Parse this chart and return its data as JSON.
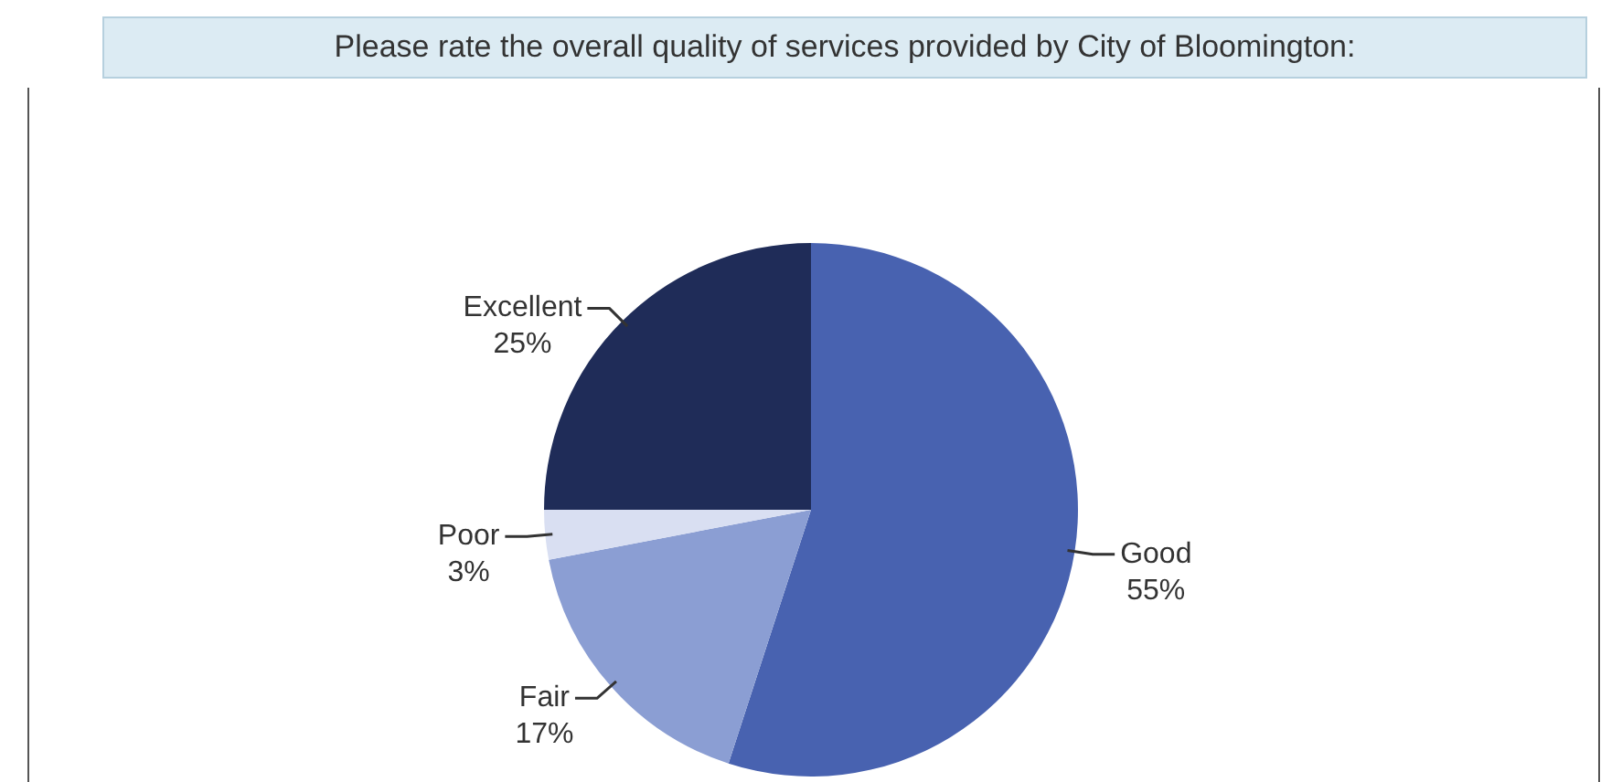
{
  "chart_data": {
    "type": "pie",
    "title": "Please rate the overall quality of services provided by City of Bloomington:",
    "categories": [
      "Good",
      "Fair",
      "Poor",
      "Excellent"
    ],
    "values": [
      55,
      17,
      3,
      25
    ],
    "value_labels": [
      "55%",
      "17%",
      "3%",
      "25%"
    ],
    "colors": [
      "#4862b0",
      "#8b9ed3",
      "#d9dff2",
      "#1f2c58"
    ],
    "legend": false
  }
}
